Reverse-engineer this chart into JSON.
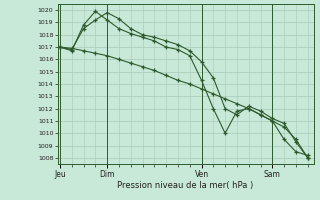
{
  "bg_color": "#c8e8d8",
  "grid_color": "#a8c8b8",
  "line_color": "#2d5a2d",
  "title": "Pression niveau de la mer( hPa )",
  "ylim": [
    1007.5,
    1020.5
  ],
  "yticks": [
    1008,
    1009,
    1010,
    1011,
    1012,
    1013,
    1014,
    1015,
    1016,
    1017,
    1018,
    1019,
    1020
  ],
  "day_labels": [
    "Jeu",
    "Dim",
    "Ven",
    "Sam"
  ],
  "day_positions": [
    0,
    4,
    12,
    18
  ],
  "xlim": [
    -0.2,
    21.5
  ],
  "xtick_minor": [
    0,
    1,
    2,
    3,
    4,
    5,
    6,
    7,
    8,
    9,
    10,
    11,
    12,
    13,
    14,
    15,
    16,
    17,
    18,
    19,
    20,
    21
  ],
  "series1_x": [
    0,
    1,
    2,
    3,
    4,
    5,
    6,
    7,
    8,
    9,
    10,
    11,
    12,
    13,
    14,
    15,
    16,
    17,
    18,
    19,
    20,
    21
  ],
  "series1_y": [
    1017.0,
    1016.9,
    1016.7,
    1016.5,
    1016.3,
    1016.0,
    1015.7,
    1015.4,
    1015.1,
    1014.7,
    1014.3,
    1014.0,
    1013.6,
    1013.2,
    1012.8,
    1012.4,
    1012.0,
    1011.5,
    1011.0,
    1010.5,
    1009.5,
    1008.0
  ],
  "series2_x": [
    0,
    1,
    2,
    3,
    4,
    5,
    6,
    7,
    8,
    9,
    10,
    11,
    12,
    13,
    14,
    15,
    16,
    17,
    18,
    19,
    20,
    21
  ],
  "series2_y": [
    1017.0,
    1016.8,
    1018.5,
    1019.2,
    1019.8,
    1019.3,
    1018.5,
    1018.0,
    1017.8,
    1017.5,
    1017.2,
    1016.7,
    1015.8,
    1014.5,
    1012.0,
    1011.5,
    1012.2,
    1011.8,
    1011.2,
    1010.8,
    1009.3,
    1008.0
  ],
  "series3_x": [
    0,
    1,
    2,
    3,
    4,
    5,
    6,
    7,
    8,
    9,
    10,
    11,
    12,
    13,
    14,
    15,
    16,
    17,
    18,
    19,
    20,
    21
  ],
  "series3_y": [
    1017.0,
    1016.7,
    1018.8,
    1019.9,
    1019.2,
    1018.5,
    1018.1,
    1017.8,
    1017.5,
    1017.0,
    1016.8,
    1016.3,
    1014.3,
    1012.0,
    1010.0,
    1011.8,
    1012.0,
    1011.5,
    1011.0,
    1009.5,
    1008.5,
    1008.2
  ]
}
